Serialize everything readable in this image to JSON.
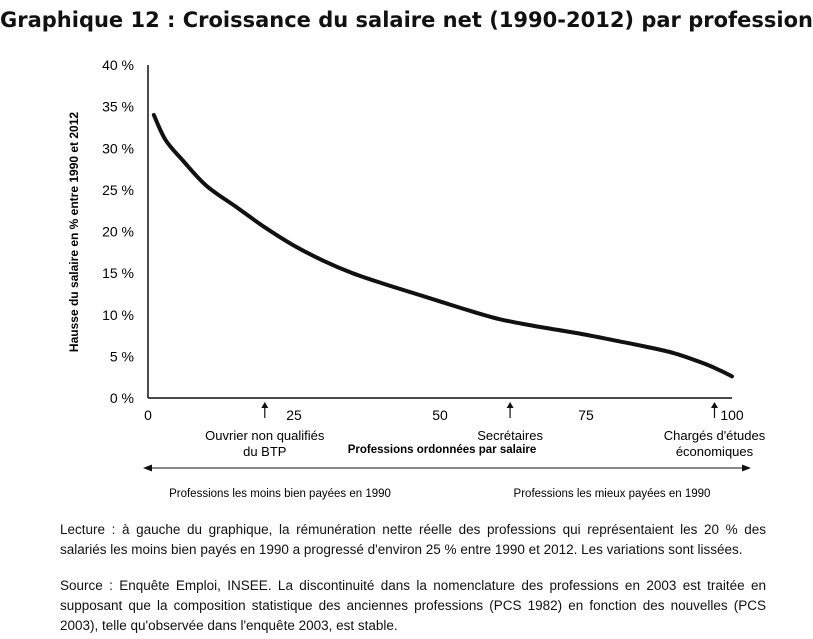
{
  "title": "Graphique 12 : Croissance du salaire net (1990-2012) par profession",
  "chart_data": {
    "type": "line",
    "ylabel": "Hausse du salaire en % entre 1990 et 2012",
    "xlabel": "Professions ordonnées par salaire",
    "xlim": [
      0,
      100
    ],
    "ylim": [
      0,
      40
    ],
    "x_ticks": [
      "0",
      "25",
      "50",
      "75",
      "100"
    ],
    "y_ticks": [
      "0 %",
      "5 %",
      "10 %",
      "15 %",
      "20 %",
      "25 %",
      "30 %",
      "35 %",
      "40 %"
    ],
    "grid": false,
    "series": [
      {
        "x": [
          1,
          3,
          6,
          10,
          15,
          20,
          25,
          30,
          35,
          40,
          45,
          50,
          55,
          60,
          65,
          70,
          75,
          80,
          85,
          90,
          95,
          98,
          100
        ],
        "y": [
          34,
          31,
          28.5,
          25.5,
          23,
          20.5,
          18.3,
          16.5,
          15,
          13.8,
          12.7,
          11.6,
          10.5,
          9.5,
          8.8,
          8.2,
          7.6,
          6.9,
          6.2,
          5.4,
          4.2,
          3.3,
          2.6
        ]
      }
    ],
    "annotations": [
      {
        "x": 20,
        "label_lines": [
          "Ouvrier non qualifiés",
          "du BTP"
        ]
      },
      {
        "x": 62,
        "label_lines": [
          "Secrétaires"
        ]
      },
      {
        "x": 97,
        "label_lines": [
          "Chargés d'études",
          "économiques"
        ]
      }
    ],
    "ranges": {
      "left": "Professions les moins bien payées en 1990",
      "right": "Professions les mieux payées en 1990"
    }
  },
  "lecture": "Lecture : à gauche du graphique, la rémunération nette réelle des professions qui représentaient les 20 % des salariés les moins bien payés en 1990 a progressé d'environ 25 % entre 1990 et 2012. Les variations sont lissées.",
  "source": "Source : Enquête Emploi, INSEE. La discontinuité dans la nomenclature des professions en 2003 est traitée en supposant que la composition statistique des anciennes professions (PCS 1982) en fonction des nouvelles (PCS 2003), telle qu'observée dans l'enquête 2003, est stable."
}
